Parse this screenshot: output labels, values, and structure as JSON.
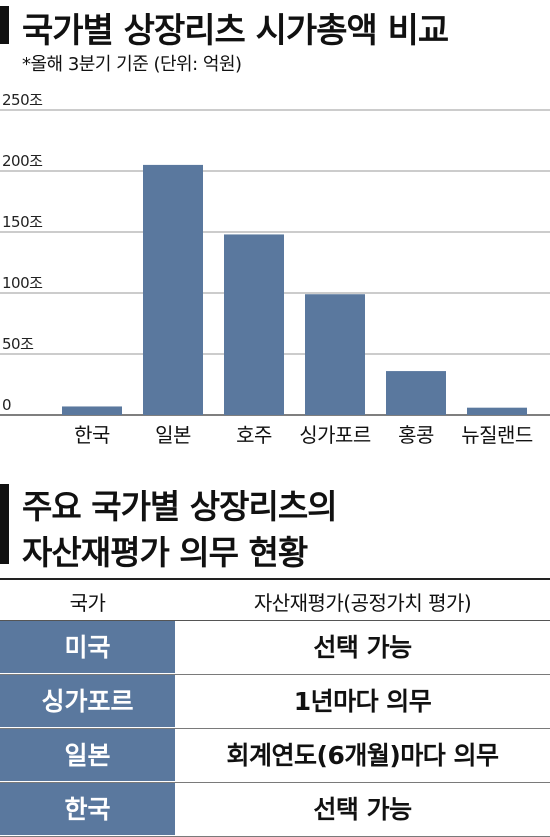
{
  "chart_title": "국가별 상장리츠 시가총액 비교",
  "chart_subtitle": "*올해 3분기 기준  (단위: 억원)",
  "chart_data": {
    "type": "bar",
    "categories": [
      "한국",
      "일본",
      "호주",
      "싱가포르",
      "홍콩",
      "뉴질랜드"
    ],
    "values": [
      7,
      205,
      148,
      99,
      36,
      6
    ],
    "ylim": [
      0,
      250
    ],
    "yticks": [
      0,
      50,
      100,
      150,
      200,
      250
    ],
    "ytick_labels": [
      "0",
      "50조",
      "100조",
      "150조",
      "200조",
      "250조"
    ],
    "grid": true,
    "bar_color": "#5a789e"
  },
  "section2_title_line1": "주요 국가별 상장리츠의",
  "section2_title_line2": "자산재평가 의무 현황",
  "table": {
    "headers": [
      "국가",
      "자산재평가(공정가치 평가)"
    ],
    "rows": [
      {
        "country": "미국",
        "status": "선택 가능"
      },
      {
        "country": "싱가포르",
        "status": "1년마다 의무"
      },
      {
        "country": "일본",
        "status": "회계연도(6개월)마다 의무"
      },
      {
        "country": "한국",
        "status": "선택 가능"
      }
    ],
    "row_color": "#5a789e"
  }
}
